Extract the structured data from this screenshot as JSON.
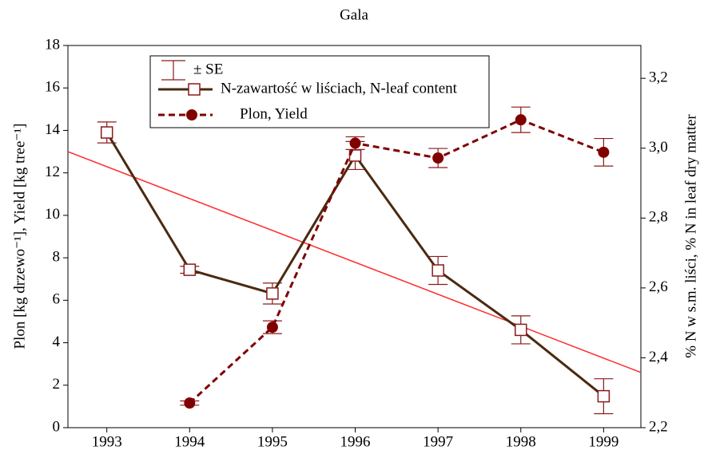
{
  "chart_data": {
    "type": "line",
    "title": "Gala",
    "y_label": "Plon [kg drzewo⁻¹],   Yield [kg tree⁻¹]",
    "y2_label": "% N w s.m. liści,  % N in leaf dry matter",
    "x": [
      1993,
      1994,
      1995,
      1996,
      1997,
      1998,
      1999
    ],
    "xlim": [
      1992.53,
      1999.45
    ],
    "xticks": [
      1993,
      1994,
      1995,
      1996,
      1997,
      1998,
      1999
    ],
    "ylim": [
      0,
      18
    ],
    "yticks": [
      0,
      2,
      4,
      6,
      8,
      10,
      12,
      14,
      16,
      18
    ],
    "y2lim": [
      2.2,
      3.294
    ],
    "y2ticks": [
      {
        "value": 2.2,
        "label": "2,2"
      },
      {
        "value": 2.4,
        "label": "2,4"
      },
      {
        "value": 2.6,
        "label": "2,6"
      },
      {
        "value": 2.8,
        "label": "2,8"
      },
      {
        "value": 3.0,
        "label": "3,0"
      },
      {
        "value": 3.2,
        "label": "3,2"
      }
    ],
    "se_label": "± SE",
    "error_color": "#8b1a1a",
    "series": [
      {
        "name": "N-zawartość w liściach, N-leaf content",
        "color": "#4a2a10",
        "marker": "square",
        "marker_color": "#8b1a1a",
        "dash": false,
        "axis": "y2",
        "values": [
          3.045,
          2.652,
          2.584,
          2.979,
          2.65,
          2.48,
          2.29
        ],
        "errors": [
          0.03,
          0.01,
          0.03,
          0.04,
          0.04,
          0.04,
          0.05
        ]
      },
      {
        "name": "Plon, Yield",
        "color": "#800000",
        "marker": "circle",
        "marker_color": "#800000",
        "dash": true,
        "axis": "y",
        "values": [
          null,
          1.16,
          4.73,
          13.4,
          12.7,
          14.5,
          12.97
        ],
        "errors": [
          null,
          0.1,
          0.3,
          0.3,
          0.45,
          0.6,
          0.65
        ]
      }
    ],
    "trend_line": {
      "color": "#ff2a2a",
      "axis": "y2",
      "x": [
        1992.53,
        1999.45
      ],
      "values": [
        2.99,
        2.358
      ]
    }
  }
}
